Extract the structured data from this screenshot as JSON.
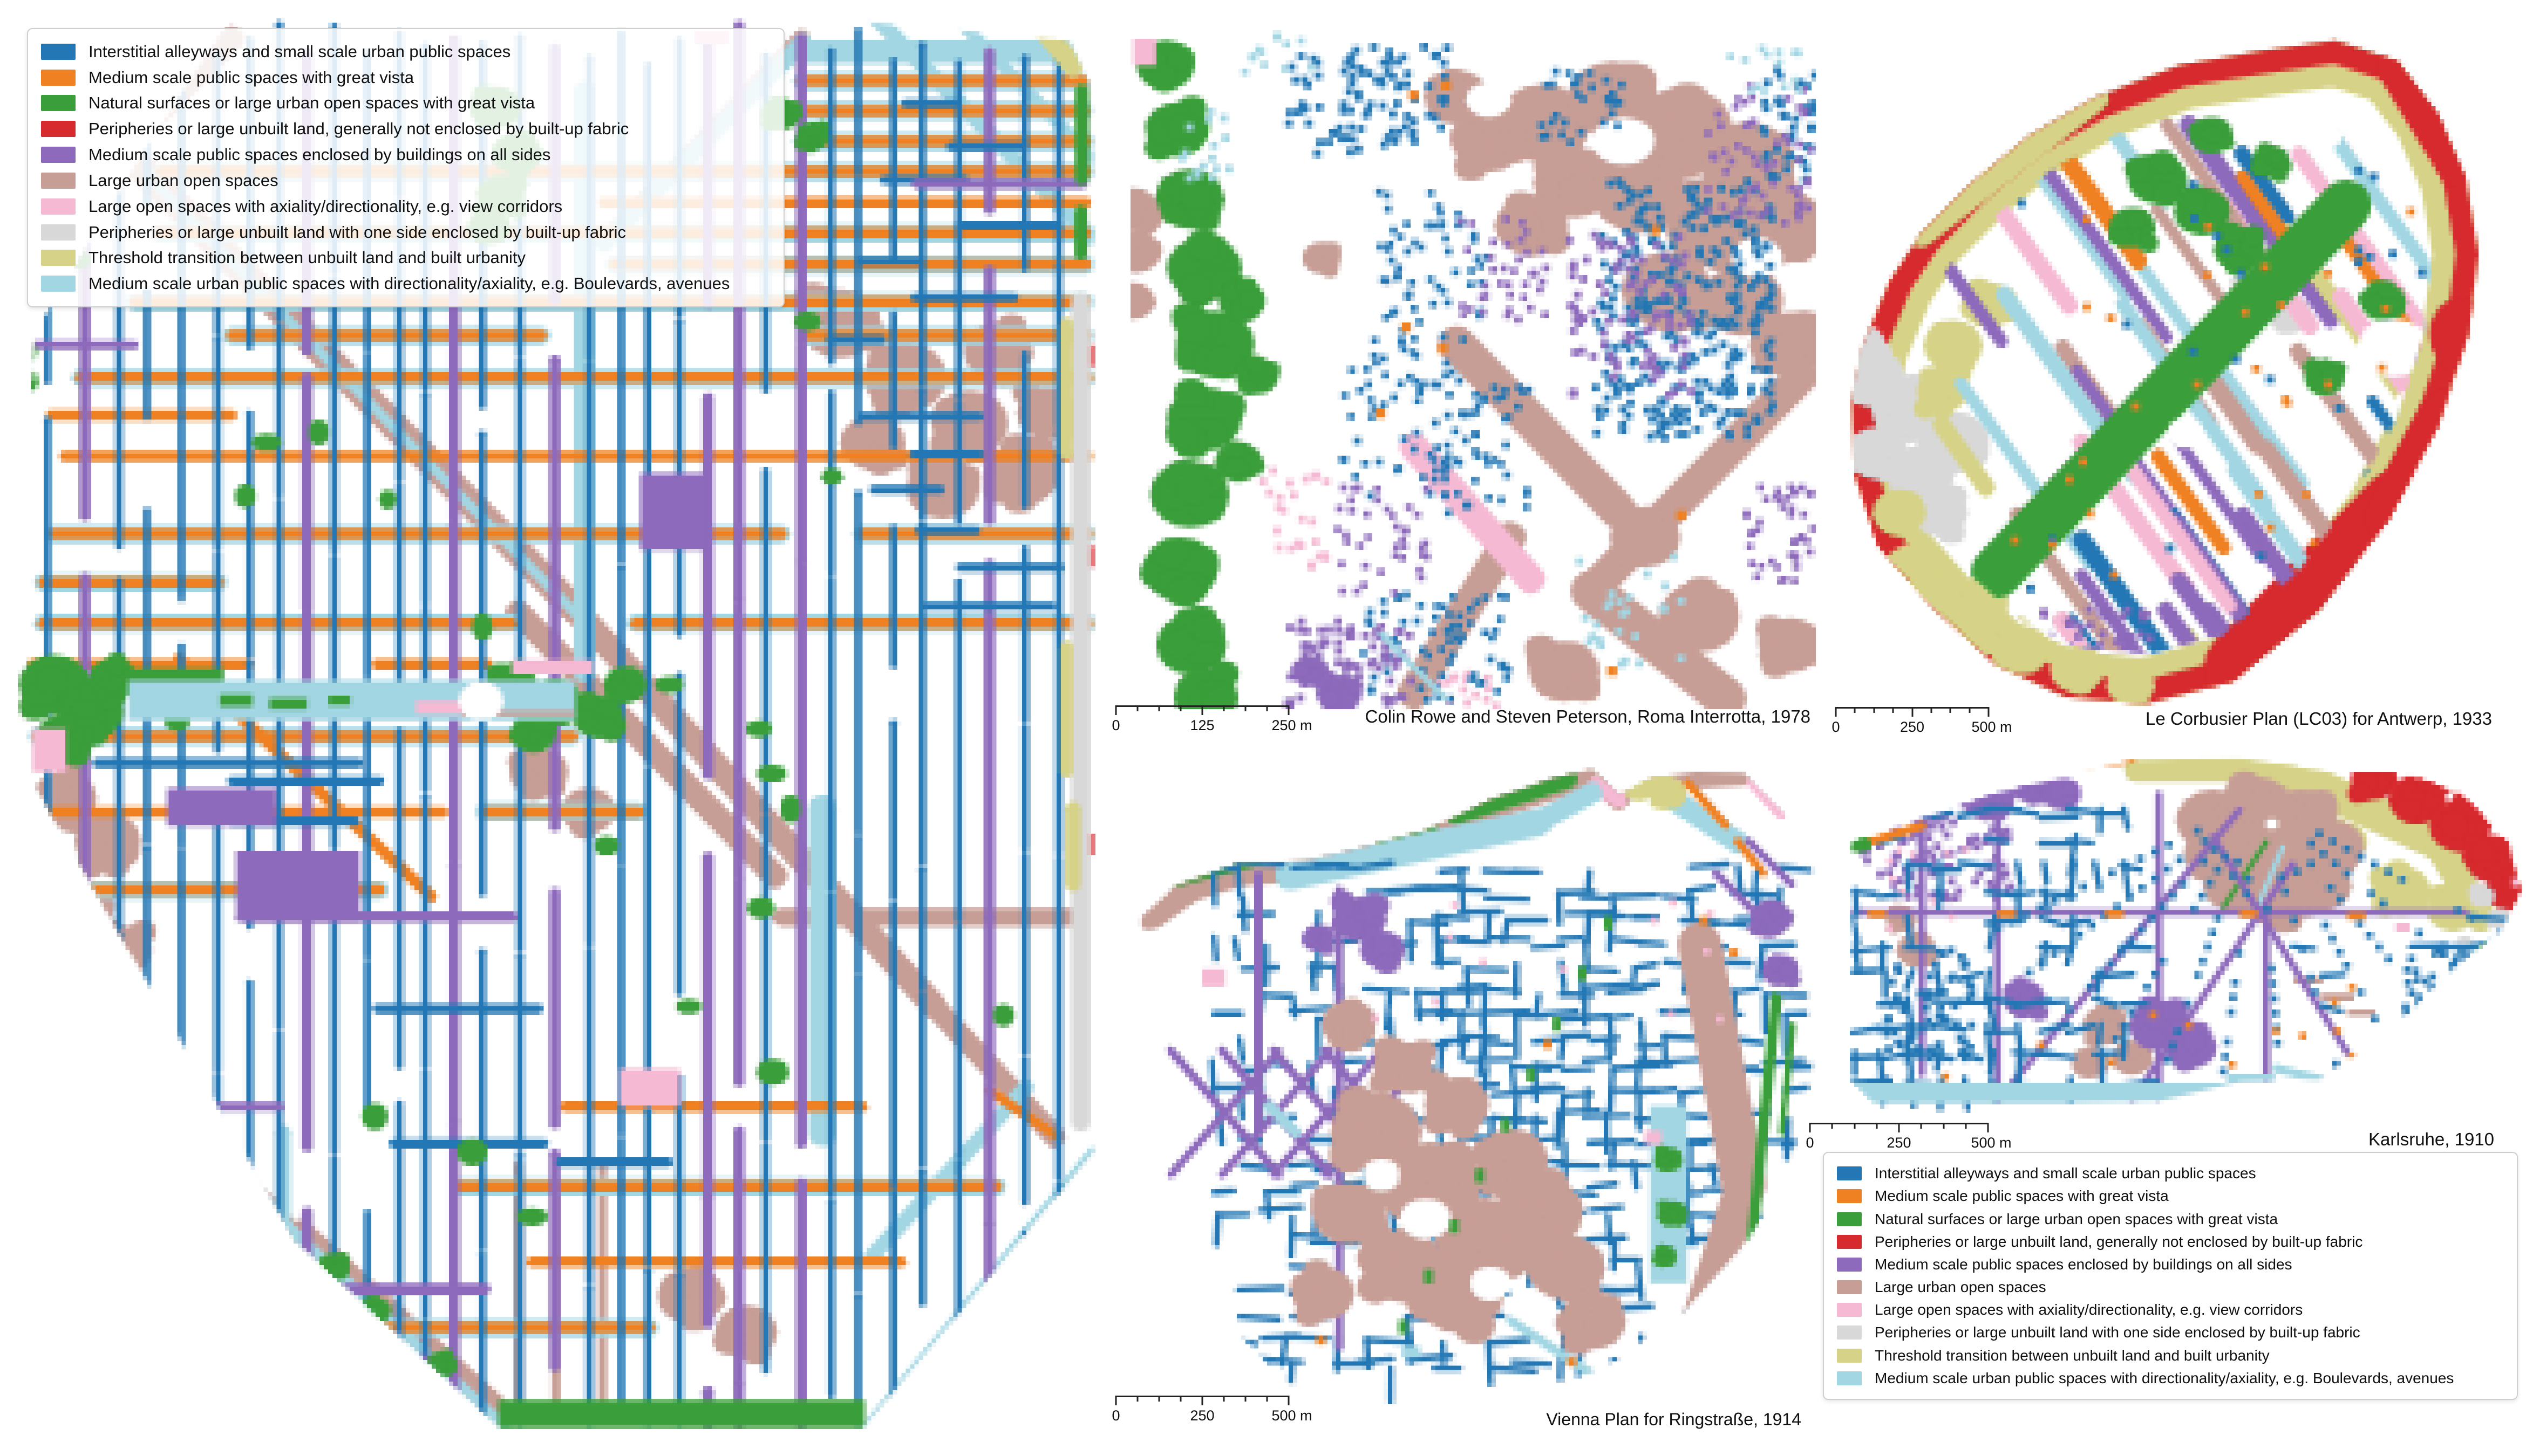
{
  "palette": {
    "blue": "#2277b4",
    "orange": "#f08122",
    "green": "#3a9e3a",
    "red": "#d62a2e",
    "purple": "#8d6abb",
    "brown": "#c79e96",
    "pink": "#f6b9d3",
    "gray": "#d8d8d8",
    "khaki": "#d6d388",
    "cyan": "#a2d6e3"
  },
  "legend": {
    "items": [
      {
        "label": "Interstitial alleyways and small scale urban public spaces",
        "color": "blue"
      },
      {
        "label": "Medium scale public spaces with great vista",
        "color": "orange"
      },
      {
        "label": "Natural surfaces or large urban open spaces with great vista",
        "color": "green"
      },
      {
        "label": "Peripheries or large unbuilt land, generally not enclosed by built-up fabric",
        "color": "red"
      },
      {
        "label": "Medium scale public spaces enclosed by buildings on all sides",
        "color": "purple"
      },
      {
        "label": "Large urban open spaces",
        "color": "brown"
      },
      {
        "label": "Large open spaces with axiality/directionality, e.g. view corridors",
        "color": "pink"
      },
      {
        "label": "Peripheries or large unbuilt land with one side enclosed by built-up fabric",
        "color": "gray"
      },
      {
        "label": "Threshold transition between unbuilt land and built urbanity",
        "color": "khaki"
      },
      {
        "label": "Medium scale urban public spaces with directionality/axiality, e.g. Boulevards, avenues",
        "color": "cyan"
      }
    ]
  },
  "panels": {
    "roma": {
      "caption": "Colin Rowe and Steven Peterson, Roma Interrotta, 1978",
      "scalebar": [
        "0",
        "125",
        "250 m"
      ]
    },
    "antwerp": {
      "caption": "Le Corbusier Plan (LC03) for Antwerp, 1933",
      "scalebar": [
        "0",
        "250",
        "500 m"
      ]
    },
    "vienna": {
      "caption": "Vienna Plan for Ringstraße, 1914",
      "scalebar": [
        "0",
        "250",
        "500 m"
      ]
    },
    "karlsruhe": {
      "caption": "Karlsruhe, 1910",
      "scalebar": [
        "0",
        "250",
        "500 m"
      ]
    }
  }
}
